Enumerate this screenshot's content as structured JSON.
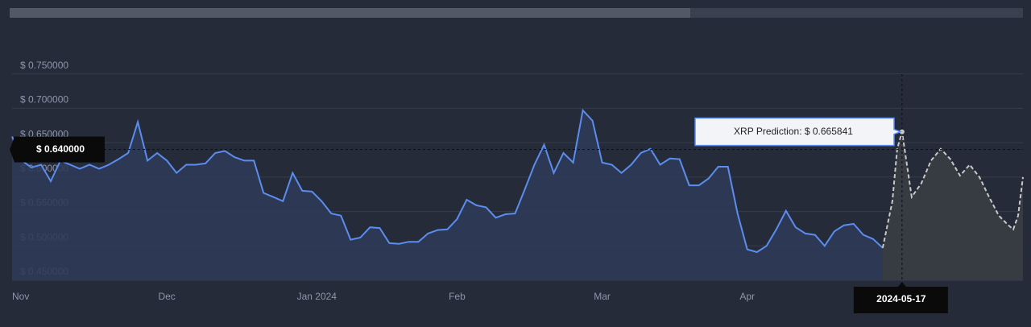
{
  "chart_data": {
    "type": "line",
    "xlim": [
      0,
      209
    ],
    "xticks": [
      {
        "value": 0,
        "label": "Nov"
      },
      {
        "value": 32,
        "label": "Dec"
      },
      {
        "value": 63,
        "label": "Jan 2024"
      },
      {
        "value": 92,
        "label": "Feb"
      },
      {
        "value": 122,
        "label": "Mar"
      },
      {
        "value": 152,
        "label": "Apr"
      }
    ],
    "ylim": [
      0.45,
      0.8
    ],
    "yticks": [
      {
        "value": 0.45,
        "label": "$ 0.450000"
      },
      {
        "value": 0.5,
        "label": "$ 0.500000"
      },
      {
        "value": 0.55,
        "label": "$ 0.550000"
      },
      {
        "value": 0.6,
        "label": "$ 0.600000"
      },
      {
        "value": 0.65,
        "label": "$ 0.650000"
      },
      {
        "value": 0.7,
        "label": "$ 0.700000"
      },
      {
        "value": 0.75,
        "label": "$ 0.750000"
      }
    ],
    "grid": true,
    "series": [
      {
        "color": "#5b8def",
        "fill": "#2f3b58",
        "dashed": false,
        "x": [
          0,
          2,
          4,
          6,
          8,
          10,
          12,
          14,
          16,
          18,
          20,
          22,
          24,
          26,
          28,
          30,
          32,
          34,
          36,
          38,
          40,
          42,
          44,
          46,
          48,
          50,
          52,
          54,
          56,
          58,
          60,
          62,
          64,
          66,
          68,
          70,
          72,
          74,
          76,
          78,
          80,
          82,
          84,
          86,
          88,
          90,
          92,
          94,
          96,
          98,
          100,
          102,
          104,
          106,
          108,
          110,
          112,
          114,
          116,
          118,
          120,
          122,
          124,
          126,
          128,
          130,
          132,
          134,
          136,
          138,
          140,
          142,
          144,
          146,
          148,
          150,
          152,
          154,
          156,
          158,
          160,
          162,
          164,
          166,
          168,
          170,
          172,
          174,
          176,
          178,
          180
        ],
        "values": [
          0.659,
          0.624,
          0.614,
          0.618,
          0.594,
          0.624,
          0.618,
          0.612,
          0.618,
          0.612,
          0.618,
          0.626,
          0.635,
          0.68,
          0.624,
          0.635,
          0.624,
          0.606,
          0.618,
          0.618,
          0.62,
          0.635,
          0.638,
          0.629,
          0.624,
          0.624,
          0.577,
          0.571,
          0.565,
          0.606,
          0.58,
          0.579,
          0.565,
          0.547,
          0.544,
          0.509,
          0.512,
          0.527,
          0.526,
          0.504,
          0.503,
          0.506,
          0.506,
          0.518,
          0.523,
          0.524,
          0.539,
          0.567,
          0.559,
          0.556,
          0.541,
          0.546,
          0.547,
          0.582,
          0.618,
          0.647,
          0.606,
          0.635,
          0.621,
          0.697,
          0.682,
          0.621,
          0.618,
          0.606,
          0.618,
          0.635,
          0.641,
          0.618,
          0.627,
          0.626,
          0.588,
          0.588,
          0.598,
          0.615,
          0.615,
          0.547,
          0.495,
          0.491,
          0.5,
          0.524,
          0.551,
          0.527,
          0.518,
          0.516,
          0.5,
          0.521,
          0.53,
          0.532,
          0.516,
          0.51,
          0.497
        ]
      },
      {
        "color": "#c8c8c8",
        "fill": "#3a3d44",
        "dashed": true,
        "x": [
          180,
          182,
          183,
          184,
          186,
          188,
          190,
          192,
          194,
          196,
          198,
          200,
          202,
          204,
          206,
          207,
          208,
          209
        ],
        "values": [
          0.497,
          0.565,
          0.641,
          0.665841,
          0.571,
          0.591,
          0.624,
          0.641,
          0.626,
          0.602,
          0.618,
          0.6,
          0.571,
          0.544,
          0.53,
          0.524,
          0.544,
          0.6
        ]
      }
    ],
    "crosshair": {
      "x": 184,
      "x_label": "2024-05-17",
      "value": 0.665841,
      "label": "XRP Prediction: $ 0.665841"
    },
    "y_marker": {
      "value": 0.64,
      "label": "$ 0.640000"
    }
  }
}
